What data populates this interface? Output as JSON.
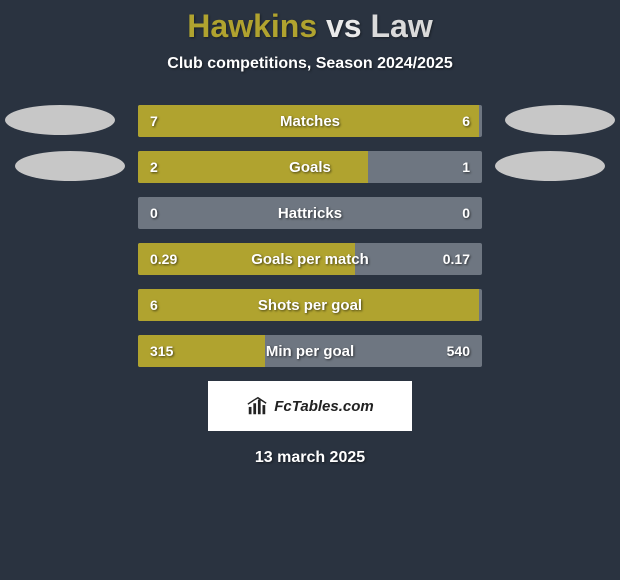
{
  "title": {
    "player1": "Hawkins",
    "vs": "vs",
    "player2": "Law"
  },
  "subtitle": "Club competitions, Season 2024/2025",
  "colors": {
    "background": "#2a3340",
    "player1": "#b0a32f",
    "player2": "#d0d0d0",
    "bar_bg": "#6e7681",
    "text": "#ffffff",
    "oval": "#c7c7c7"
  },
  "rows": [
    {
      "label": "Matches",
      "left": "7",
      "right": "6",
      "left_pct": 99,
      "right_pct": 0
    },
    {
      "label": "Goals",
      "left": "2",
      "right": "1",
      "left_pct": 67,
      "right_pct": 0
    },
    {
      "label": "Hattricks",
      "left": "0",
      "right": "0",
      "left_pct": 0,
      "right_pct": 0
    },
    {
      "label": "Goals per match",
      "left": "0.29",
      "right": "0.17",
      "left_pct": 63,
      "right_pct": 0
    },
    {
      "label": "Shots per goal",
      "left": "6",
      "right": "",
      "left_pct": 99,
      "right_pct": 0
    },
    {
      "label": "Min per goal",
      "left": "315",
      "right": "540",
      "left_pct": 37,
      "right_pct": 0
    }
  ],
  "brand": "FcTables.com",
  "date": "13 march 2025"
}
